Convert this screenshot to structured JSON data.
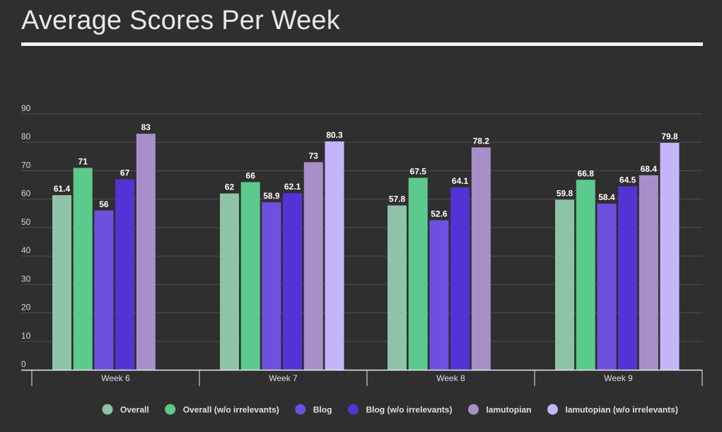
{
  "chart_data": {
    "type": "bar",
    "title": "Average Scores Per Week",
    "xlabel": "",
    "ylabel": "",
    "ylim": [
      0,
      90
    ],
    "yticks": [
      0,
      10,
      20,
      30,
      40,
      50,
      60,
      70,
      80,
      90
    ],
    "grid": true,
    "legend_position": "bottom",
    "categories": [
      "Week 6",
      "Week 7",
      "Week 8",
      "Week 9"
    ],
    "series": [
      {
        "name": "Overall",
        "color": "#8fc3a8",
        "values": [
          61.4,
          62,
          57.8,
          59.8
        ]
      },
      {
        "name": "Overall (w/o irrelevants)",
        "color": "#5cc98d",
        "values": [
          71,
          66,
          67.5,
          66.8
        ]
      },
      {
        "name": "Blog",
        "color": "#6e50e0",
        "values": [
          56,
          58.9,
          52.6,
          58.4
        ]
      },
      {
        "name": "Blog (w/o irrelevants)",
        "color": "#5433d6",
        "values": [
          67,
          62.1,
          64.1,
          64.5
        ]
      },
      {
        "name": "Iamutopian",
        "color": "#a98fca",
        "values": [
          83,
          73,
          78.2,
          68.4
        ]
      },
      {
        "name": "Iamutopian (w/o irrelevants)",
        "color": "#c4b5fb",
        "values": [
          null,
          80.3,
          null,
          79.8
        ]
      }
    ]
  }
}
